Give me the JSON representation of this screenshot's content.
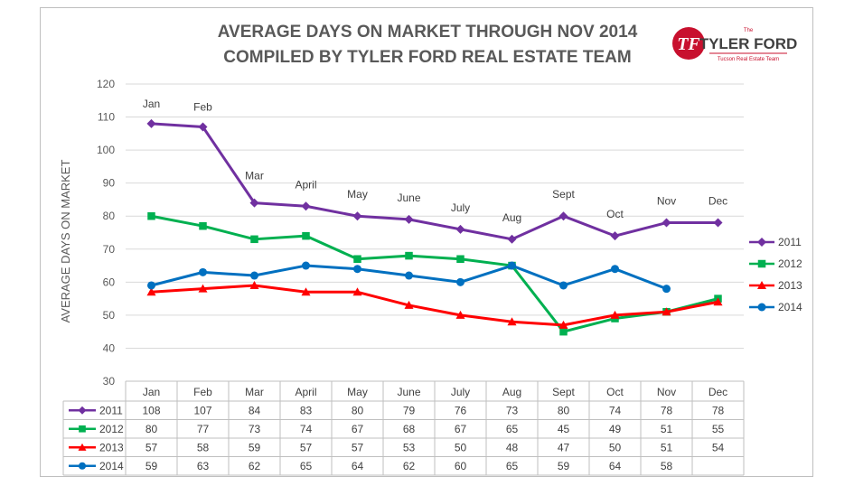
{
  "chart_data": {
    "type": "line",
    "title_lines": [
      "AVERAGE DAYS ON MARKET THROUGH NOV 2014",
      "COMPILED BY TYLER FORD REAL ESTATE TEAM"
    ],
    "ylabel": "AVERAGE DAYS ON MARKET",
    "xlabel": "",
    "ylim": [
      30,
      120
    ],
    "yticks": [
      30,
      40,
      50,
      60,
      70,
      80,
      90,
      100,
      110,
      120
    ],
    "grid": true,
    "legend_position": "right",
    "categories": [
      "Jan",
      "Feb",
      "Mar",
      "April",
      "May",
      "June",
      "July",
      "Aug",
      "Sept",
      "Oct",
      "Nov",
      "Dec"
    ],
    "series": [
      {
        "name": "2011",
        "color": "#7030a0",
        "marker": "diamond",
        "values": [
          108,
          107,
          84,
          83,
          80,
          79,
          76,
          73,
          80,
          74,
          78,
          78
        ]
      },
      {
        "name": "2012",
        "color": "#00b050",
        "marker": "square",
        "values": [
          80,
          77,
          73,
          74,
          67,
          68,
          67,
          65,
          45,
          49,
          51,
          55
        ]
      },
      {
        "name": "2013",
        "color": "#ff0000",
        "marker": "triangle",
        "values": [
          57,
          58,
          59,
          57,
          57,
          53,
          50,
          48,
          47,
          50,
          51,
          54
        ]
      },
      {
        "name": "2014",
        "color": "#0070c0",
        "marker": "circle",
        "values": [
          59,
          63,
          62,
          65,
          64,
          62,
          60,
          65,
          59,
          64,
          58,
          null
        ]
      }
    ],
    "month_annotations": [
      "Jan",
      "Feb",
      "Mar",
      "April",
      "May",
      "June",
      "July",
      "Aug",
      "Sept",
      "Oct",
      "Nov",
      "Dec"
    ],
    "data_table": true
  },
  "logo": {
    "small_text": "The",
    "main_text": "TYLER FORD",
    "sub_text": "Tucson Real Estate Team",
    "monogram": "TF",
    "colors": {
      "red": "#c8102e",
      "dark": "#404040"
    }
  }
}
